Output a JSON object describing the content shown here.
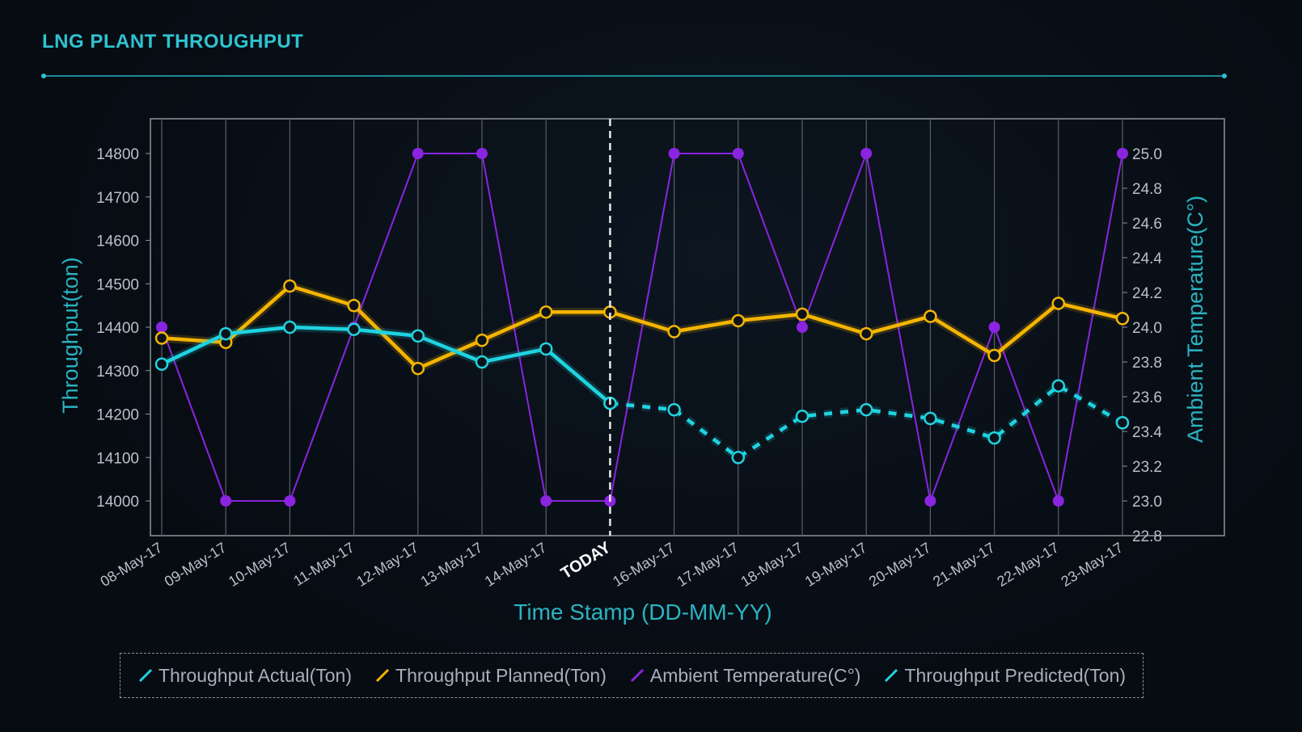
{
  "page": {
    "title": "LNG PLANT THROUGHPUT"
  },
  "colors": {
    "actual": "#1fd3e0",
    "planned": "#f4b400",
    "temperature": "#8a24e0",
    "predicted": "#1fd3e0",
    "axis_title": "#2bb3c0",
    "tick": "#b9c0c8"
  },
  "chart_data": {
    "type": "line",
    "title": "LNG PLANT THROUGHPUT",
    "xlabel": "Time Stamp (DD-MM-YY)",
    "ylabel": "Throughput(ton)",
    "y2label": "Ambient Temperature(C°)",
    "ylim": [
      13920,
      14880
    ],
    "y2lim": [
      22.8,
      25.2
    ],
    "yticks": [
      14000,
      14100,
      14200,
      14300,
      14400,
      14500,
      14600,
      14700,
      14800
    ],
    "y2ticks": [
      22.8,
      23.0,
      23.2,
      23.4,
      23.6,
      23.8,
      24.0,
      24.2,
      24.4,
      24.6,
      24.8,
      25.0
    ],
    "grid": "vertical",
    "today_marker": "TODAY",
    "categories": [
      "08-May-17",
      "09-May-17",
      "10-May-17",
      "11-May-17",
      "12-May-17",
      "13-May-17",
      "14-May-17",
      "TODAY",
      "16-May-17",
      "17-May-17",
      "18-May-17",
      "19-May-17",
      "20-May-17",
      "21-May-17",
      "22-May-17",
      "23-May-17"
    ],
    "series": [
      {
        "name": "Throughput Actual(Ton)",
        "axis": "left",
        "style": "solid",
        "values": [
          14315,
          14385,
          14400,
          14395,
          14380,
          14320,
          14350,
          14225,
          null,
          null,
          null,
          null,
          null,
          null,
          null,
          null
        ]
      },
      {
        "name": "Throughput Planned(Ton)",
        "axis": "left",
        "style": "solid",
        "values": [
          14375,
          14365,
          14495,
          14450,
          14305,
          14370,
          14435,
          14435,
          14390,
          14415,
          14430,
          14385,
          14425,
          14335,
          14455,
          14420
        ]
      },
      {
        "name": "Ambient Temperature(C°)",
        "axis": "right",
        "style": "thin",
        "values": [
          24.0,
          23.0,
          23.0,
          24.0,
          25.0,
          25.0,
          23.0,
          23.0,
          25.0,
          25.0,
          24.0,
          25.0,
          23.0,
          24.0,
          23.0,
          25.0
        ]
      },
      {
        "name": "Throughput Predicted(Ton)",
        "axis": "left",
        "style": "dashed",
        "values": [
          null,
          null,
          null,
          null,
          null,
          null,
          null,
          14225,
          14210,
          14100,
          14195,
          14210,
          14190,
          14145,
          14265,
          14180
        ]
      }
    ],
    "legend_position": "bottom"
  }
}
